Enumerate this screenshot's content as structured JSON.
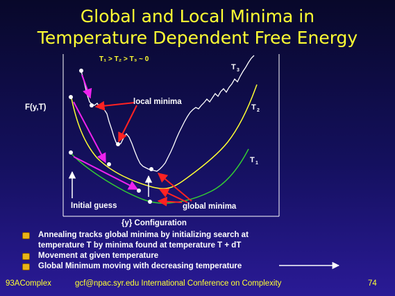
{
  "slide": {
    "title_line1": "Global and Local Minima in",
    "title_line2": "Temperature Dependent Free Energy",
    "page_number": "74"
  },
  "diagram": {
    "temp_order": "T₁ > T₂ > T₃ ~ 0",
    "y_axis_label": "F(y,T)",
    "x_axis_label": "{y} Configuration",
    "local_minima_label": "local minima",
    "global_minima_label": "global minima",
    "initial_guess_label": "Initial guess",
    "curves": [
      {
        "name": "T3",
        "label": "T",
        "subscript": "3",
        "color": "#ffffff"
      },
      {
        "name": "T2",
        "label": "T",
        "subscript": "2",
        "color": "#ffff33"
      },
      {
        "name": "T1",
        "label": "T",
        "subscript": "1",
        "color": "#33cc33"
      }
    ]
  },
  "bullets": [
    "Annealing tracks global minima by initializing search at",
    "temperature T by minima found at temperature T + dT",
    "Movement at given temperature",
    "Global Minimum moving with decreasing temperature"
  ],
  "footer": {
    "left": "93AComplex",
    "center": "gcf@npac.syr.edu International Conference on Complexity"
  },
  "colors": {
    "background_top": "#08082a",
    "background_bottom": "#2a1a96",
    "title": "#ffff33",
    "arrow_movement": "#ee22ee",
    "arrow_global": "#ff2222"
  }
}
